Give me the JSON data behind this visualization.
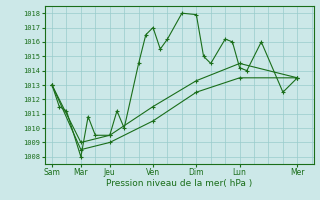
{
  "xlabel": "Pression niveau de la mer( hPa )",
  "background_color": "#cce8e8",
  "grid_color": "#99cccc",
  "line_color": "#1a6e1a",
  "ylim": [
    1007.5,
    1018.5
  ],
  "yticks": [
    1008,
    1009,
    1010,
    1011,
    1012,
    1013,
    1014,
    1015,
    1016,
    1017,
    1018
  ],
  "x_day_labels": [
    "Sam",
    "Mar",
    "Jeu",
    "Ven",
    "Dim",
    "Lun",
    "Mer"
  ],
  "x_day_positions": [
    0,
    16,
    32,
    56,
    80,
    104,
    136
  ],
  "xlim": [
    -4,
    145
  ],
  "series1": {
    "x": [
      0,
      4,
      8,
      16,
      20,
      24,
      32,
      36,
      40,
      48,
      52,
      56,
      60,
      64,
      72,
      80,
      84,
      88,
      96,
      100,
      104,
      108,
      116,
      128,
      136
    ],
    "y": [
      1013.0,
      1011.5,
      1011.2,
      1008.0,
      1010.8,
      1009.5,
      1009.5,
      1011.2,
      1010.0,
      1014.5,
      1016.5,
      1017.0,
      1015.5,
      1016.2,
      1018.0,
      1017.9,
      1015.0,
      1014.5,
      1016.2,
      1016.0,
      1014.2,
      1014.0,
      1016.0,
      1012.5,
      1013.5
    ]
  },
  "series2": {
    "x": [
      0,
      16,
      32,
      56,
      80,
      104,
      136
    ],
    "y": [
      1013.0,
      1009.0,
      1009.5,
      1011.5,
      1013.3,
      1014.5,
      1013.5
    ]
  },
  "series3": {
    "x": [
      0,
      16,
      32,
      56,
      80,
      104,
      136
    ],
    "y": [
      1013.0,
      1008.5,
      1009.0,
      1010.5,
      1012.5,
      1013.5,
      1013.5
    ]
  }
}
